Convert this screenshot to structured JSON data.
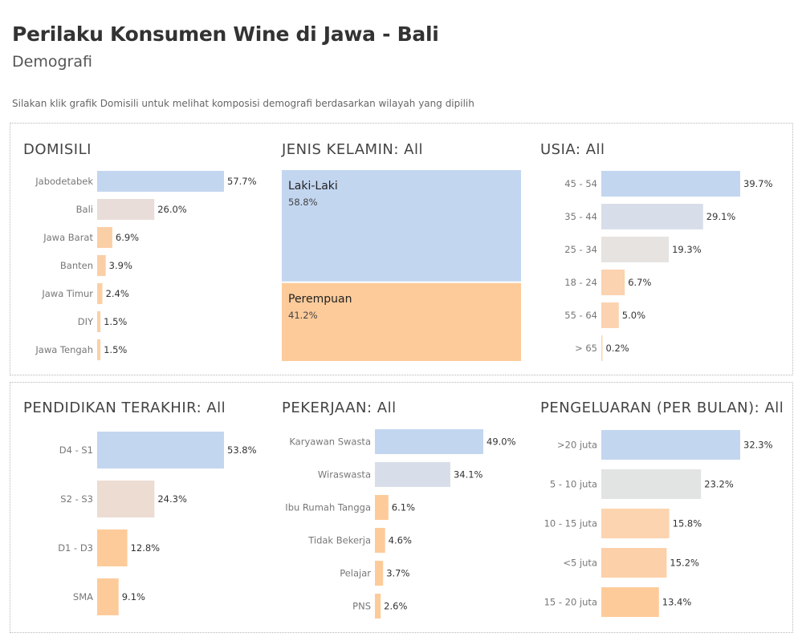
{
  "header": {
    "title": "Perilaku Konsumen Wine di Jawa - Bali",
    "subtitle": "Demografi",
    "instruction": "Silakan klik grafik Domisili untuk melihat komposisi demografi berdasarkan wilayah yang dipilih"
  },
  "charts": {
    "domisili": {
      "title": "DOMISILI",
      "chart_data": {
        "type": "bar",
        "orientation": "horizontal",
        "categories": [
          "Jabodetabek",
          "Bali",
          "Jawa Barat",
          "Banten",
          "Jawa Timur",
          "DIY",
          "Jawa Tengah"
        ],
        "values": [
          57.7,
          26.0,
          6.9,
          3.9,
          2.4,
          1.5,
          1.5
        ],
        "value_labels": [
          "57.7%",
          "26.0%",
          "6.9%",
          "3.9%",
          "2.4%",
          "1.5%",
          "1.5%"
        ],
        "colors": [
          "#c3d6f0",
          "#e8ddd8",
          "#fbcfa6",
          "#fbcfa6",
          "#fbcfa6",
          "#fbcfa6",
          "#fbcfa6"
        ],
        "xlim": [
          0,
          57.7
        ]
      }
    },
    "jenis_kelamin": {
      "title": "JENIS KELAMIN: All",
      "chart_data": {
        "type": "treemap",
        "categories": [
          "Laki-Laki",
          "Perempuan"
        ],
        "values": [
          58.8,
          41.2
        ],
        "value_labels": [
          "58.8%",
          "41.2%"
        ],
        "colors": [
          "#c3d6f0",
          "#fdcb9a"
        ]
      }
    },
    "usia": {
      "title": "USIA: All",
      "chart_data": {
        "type": "bar",
        "orientation": "horizontal",
        "categories": [
          "45 - 54",
          "35 - 44",
          "25 - 34",
          "18 - 24",
          "55 - 64",
          "> 65"
        ],
        "values": [
          39.7,
          29.1,
          19.3,
          6.7,
          5.0,
          0.2
        ],
        "value_labels": [
          "39.7%",
          "29.1%",
          "19.3%",
          "6.7%",
          "5.0%",
          "0.2%"
        ],
        "colors": [
          "#c3d6f0",
          "#d8dee9",
          "#e6e3e1",
          "#fbd3b0",
          "#fbd3b0",
          "#fbd3b0"
        ],
        "xlim": [
          0,
          39.7
        ]
      }
    },
    "pendidikan": {
      "title": "PENDIDIKAN TERAKHIR: All",
      "chart_data": {
        "type": "bar",
        "orientation": "horizontal",
        "categories": [
          "D4 - S1",
          "S2 - S3",
          "D1 - D3",
          "SMA"
        ],
        "values": [
          53.8,
          24.3,
          12.8,
          9.1
        ],
        "value_labels": [
          "53.8%",
          "24.3%",
          "12.8%",
          "9.1%"
        ],
        "colors": [
          "#c3d6f0",
          "#ecdcd2",
          "#fdcb9a",
          "#fdcb9a"
        ],
        "xlim": [
          0,
          53.8
        ]
      }
    },
    "pekerjaan": {
      "title": "PEKERJAAN: All",
      "chart_data": {
        "type": "bar",
        "orientation": "horizontal",
        "categories": [
          "Karyawan Swasta",
          "Wiraswasta",
          "Ibu Rumah Tangga",
          "Tidak Bekerja",
          "Pelajar",
          "PNS"
        ],
        "values": [
          49.0,
          34.1,
          6.1,
          4.6,
          3.7,
          2.6
        ],
        "value_labels": [
          "49.0%",
          "34.1%",
          "6.1%",
          "4.6%",
          "3.7%",
          "2.6%"
        ],
        "colors": [
          "#c3d6f0",
          "#d8dee9",
          "#fdcb9a",
          "#fdcb9a",
          "#fdcb9a",
          "#fdcb9a"
        ],
        "xlim": [
          0,
          49.0
        ]
      }
    },
    "pengeluaran": {
      "title": "PENGELUARAN (PER BULAN): All",
      "chart_data": {
        "type": "bar",
        "orientation": "horizontal",
        "categories": [
          ">20 juta",
          "5 - 10 juta",
          "10 - 15 juta",
          "<5 juta",
          "15 - 20 juta"
        ],
        "values": [
          32.3,
          23.2,
          15.8,
          15.2,
          13.4
        ],
        "value_labels": [
          "32.3%",
          "23.2%",
          "15.8%",
          "15.2%",
          "13.4%"
        ],
        "colors": [
          "#c3d6f0",
          "#e2e3e3",
          "#fcd4b0",
          "#fcd0a8",
          "#fdcb9a"
        ],
        "xlim": [
          0,
          32.3
        ]
      }
    }
  }
}
